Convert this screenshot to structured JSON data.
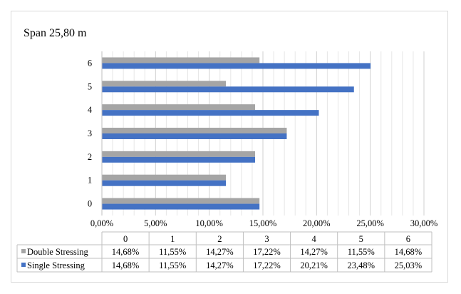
{
  "chart_data": {
    "type": "bar",
    "orientation": "horizontal",
    "title": "Span 25,80 m",
    "categories": [
      "0",
      "1",
      "2",
      "3",
      "4",
      "5",
      "6"
    ],
    "series": [
      {
        "name": "Double Stressing",
        "color": "#a5a5a5",
        "values": [
          14.68,
          11.55,
          14.27,
          17.22,
          14.27,
          11.55,
          14.68
        ],
        "labels": [
          "14,68%",
          "11,55%",
          "14,27%",
          "17,22%",
          "14,27%",
          "11,55%",
          "14,68%"
        ]
      },
      {
        "name": "Single Stressing",
        "color": "#4472c4",
        "values": [
          14.68,
          11.55,
          14.27,
          17.22,
          20.21,
          23.48,
          25.03
        ],
        "labels": [
          "14,68%",
          "11,55%",
          "14,27%",
          "17,22%",
          "20,21%",
          "23,48%",
          "25,03%"
        ]
      }
    ],
    "xlim": [
      0,
      30
    ],
    "x_ticks": [
      "0,00%",
      "5,00%",
      "10,00%",
      "15,00%",
      "20,00%",
      "25,00%",
      "30,00%"
    ],
    "grid": true,
    "data_table": true,
    "legend": "data-table"
  }
}
